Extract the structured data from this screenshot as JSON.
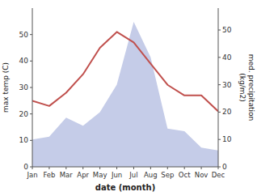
{
  "chart_data": {
    "type": "line",
    "x_label": "date (month)",
    "y_label": "max temp (C)",
    "y2_label": "med. precipitation\n(kg/m2)",
    "categories": [
      "Jan",
      "Feb",
      "Mar",
      "Apr",
      "May",
      "Jun",
      "Jul",
      "Aug",
      "Sep",
      "Oct",
      "Nov",
      "Dec"
    ],
    "series": [
      {
        "type": "area",
        "axis": "y2",
        "color": "#c5cce8",
        "values": [
          10,
          11,
          18,
          15,
          20,
          30,
          53,
          40,
          14,
          13,
          7,
          6
        ]
      },
      {
        "type": "line",
        "color": "#c0504d",
        "values": [
          25,
          23,
          28,
          35,
          45,
          51,
          47,
          39,
          31,
          27,
          27,
          21
        ]
      }
    ],
    "ylim": [
      0,
      60
    ],
    "yticks": [
      0,
      10,
      20,
      30,
      40,
      50
    ],
    "y2lim": [
      0,
      58
    ],
    "y2ticks": [
      0,
      10,
      20,
      30,
      40,
      50
    ]
  }
}
